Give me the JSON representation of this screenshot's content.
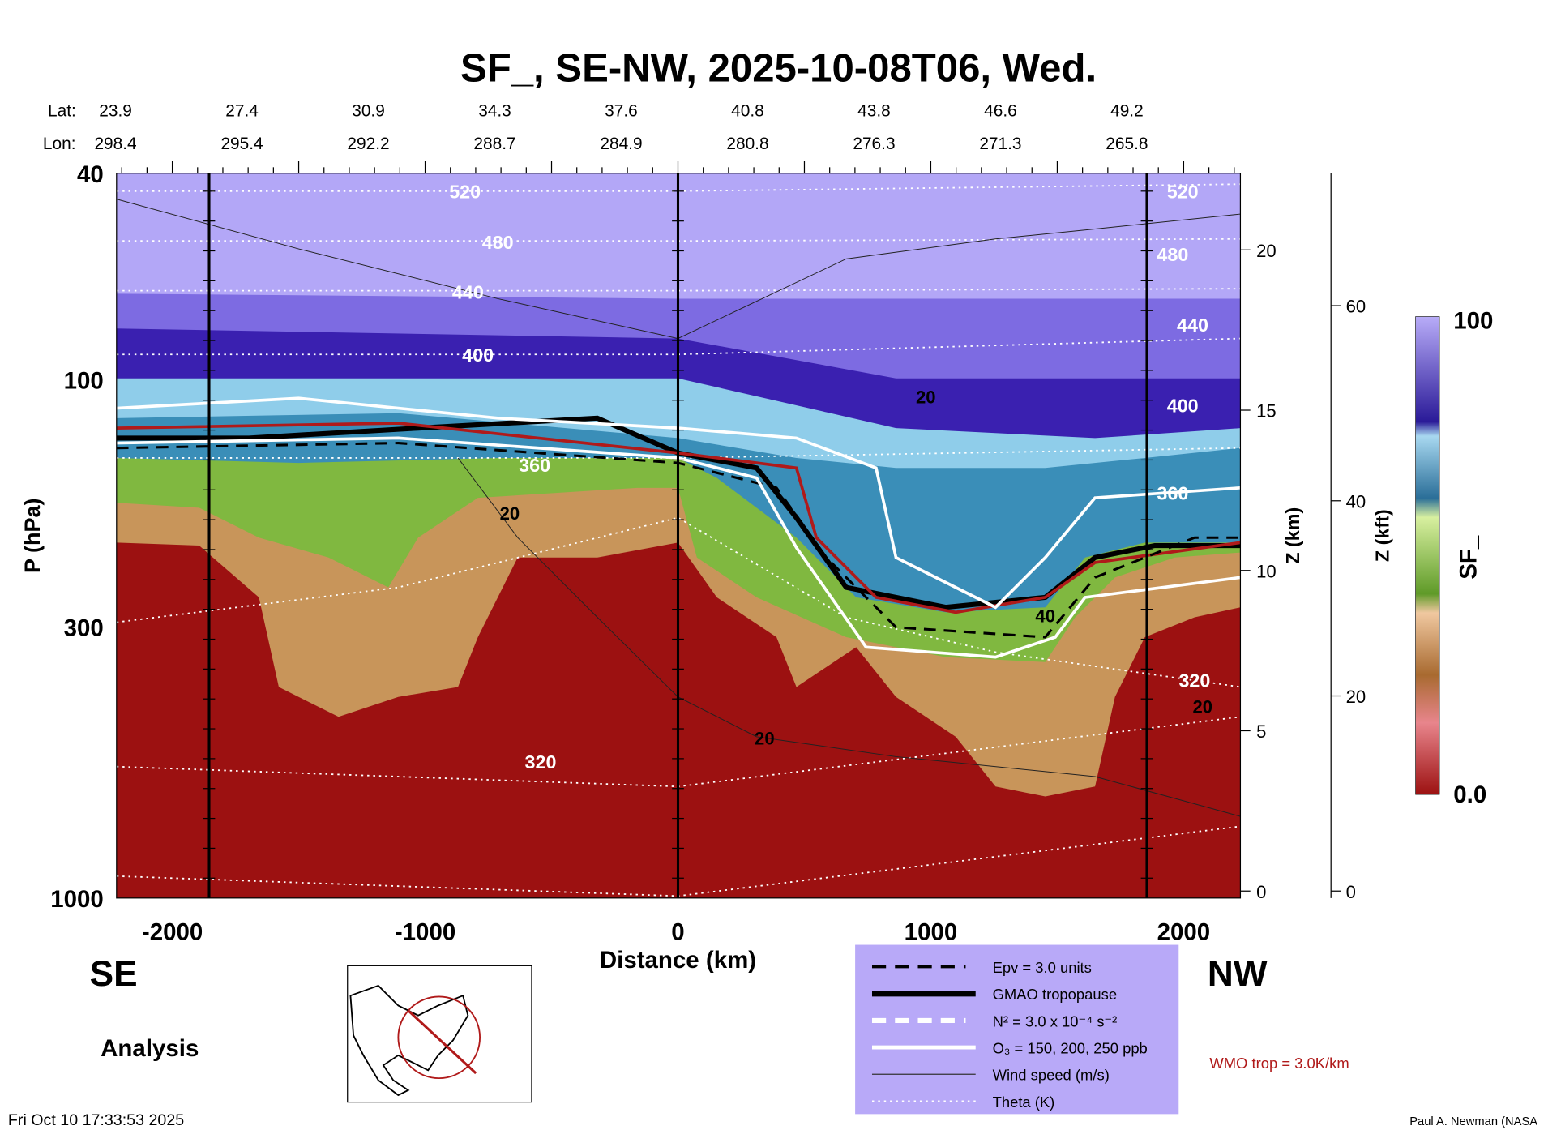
{
  "chart_data": {
    "type": "heatmap",
    "title": "SF_, SE-NW, 2025-10-08T06, Wed.",
    "xlabel": "Distance (km)",
    "ylabel": "P (hPa)",
    "y2label": "Z (km)",
    "y3label": "Z (kft)",
    "xlim": [
      -2220,
      2224
    ],
    "ylim": [
      1000,
      40
    ],
    "yscale": "log",
    "xticks": [
      "-2000",
      "-1000",
      "0",
      "1000",
      "2000"
    ],
    "xtick_values": [
      -2000,
      -1000,
      0,
      1000,
      2000
    ],
    "yticks": [
      "40",
      "100",
      "300",
      "1000"
    ],
    "ytick_values": [
      40,
      100,
      300,
      1000
    ],
    "zkm_ticks": [
      "0",
      "5",
      "10",
      "15",
      "20"
    ],
    "zkm_values": [
      0,
      5,
      10,
      15,
      20
    ],
    "zkft_ticks": [
      "0",
      "20",
      "40",
      "60"
    ],
    "zkft_values": [
      0,
      20,
      40,
      60
    ],
    "lat_label": "Lat:",
    "lon_label": "Lon:",
    "lats": [
      "23.9",
      "27.4",
      "30.9",
      "34.3",
      "37.6",
      "40.8",
      "43.8",
      "46.6",
      "49.2"
    ],
    "lons": [
      "298.4",
      "295.4",
      "292.2",
      "288.7",
      "284.9",
      "280.8",
      "276.3",
      "271.3",
      "265.8"
    ],
    "theta_labels": [
      "520",
      "480",
      "440",
      "400",
      "360",
      "320",
      "520",
      "480",
      "440",
      "400",
      "360",
      "320",
      "320"
    ],
    "wind_labels": [
      "20",
      "20",
      "20",
      "40",
      "20"
    ],
    "colorbar": {
      "label": "SF_",
      "max": "100",
      "min": "0.0",
      "range": [
        0,
        100
      ]
    },
    "direction_left": "SE",
    "direction_right": "NW",
    "legend": {
      "placement": "bottom-center",
      "items": [
        {
          "label": "Epv = 3.0 units",
          "style": "black-dashed"
        },
        {
          "label": "GMAO tropopause",
          "style": "black-thick"
        },
        {
          "label": "N² = 3.0 x 10⁻⁴ s⁻²",
          "style": "white-dashed"
        },
        {
          "label": "O₃ = 150, 200, 250 ppb",
          "style": "white-solid"
        },
        {
          "label": "Wind speed (m/s)",
          "style": "thin-black"
        },
        {
          "label": "Theta (K)",
          "style": "white-dotted"
        }
      ]
    },
    "wmo_label": "WMO trop = 3.0K/km",
    "analysis_label": "Analysis",
    "timestamp": "Fri Oct 10 17:33:53 2025",
    "credit": "Paul A. Newman (NASA",
    "colors": {
      "lavender": "#b3a7f7",
      "purple": "#7d6be2",
      "darkblue": "#3a20b0",
      "lightblue": "#8fcdea",
      "teal": "#3a8eb8",
      "green": "#80b840",
      "tan": "#c8955a",
      "red": "#9c1111",
      "wmo": "#b01a1a",
      "legend_bg": "#b8a9f8"
    }
  }
}
